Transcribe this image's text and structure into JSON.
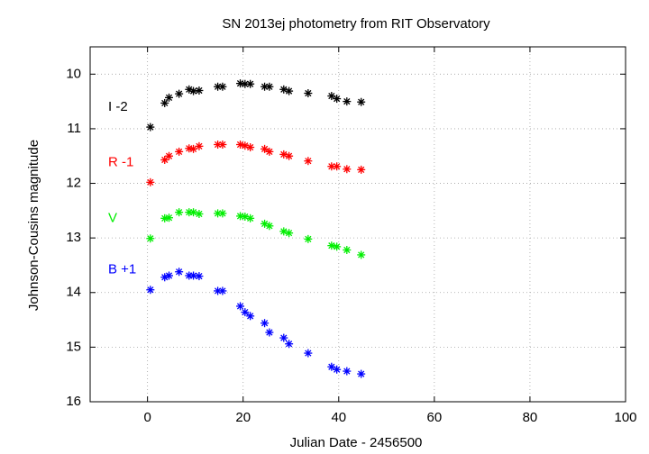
{
  "chart_data": {
    "type": "scatter",
    "title": "SN 2013ej photometry from RIT Observatory",
    "x_label": "Julian Date - 2456500",
    "y_label": "Johnson-Cousins magnitude",
    "xlim": [
      -12,
      100
    ],
    "ylim": [
      16,
      9.5
    ],
    "xticks": [
      0,
      20,
      40,
      60,
      80,
      100
    ],
    "yticks": [
      10,
      11,
      12,
      13,
      14,
      15,
      16
    ],
    "grid": true,
    "x": [
      0.6,
      3.6,
      4.5,
      6.6,
      8.7,
      9.6,
      10.8,
      14.7,
      15.7,
      19.4,
      20.4,
      21.5,
      24.5,
      25.5,
      28.5,
      29.6,
      33.6,
      38.5,
      39.6,
      41.7,
      44.7
    ],
    "series": [
      {
        "name": "I -2",
        "color": "#000000",
        "values": [
          10.97,
          10.53,
          10.43,
          10.36,
          10.28,
          10.31,
          10.3,
          10.23,
          10.23,
          10.17,
          10.18,
          10.18,
          10.23,
          10.23,
          10.28,
          10.31,
          10.35,
          10.4,
          10.45,
          10.5,
          10.51
        ]
      },
      {
        "name": "R -1",
        "color": "#ff0000",
        "values": [
          11.98,
          11.57,
          11.5,
          11.42,
          11.36,
          11.37,
          11.32,
          11.29,
          11.29,
          11.29,
          11.31,
          11.34,
          11.37,
          11.42,
          11.47,
          11.5,
          11.59,
          11.69,
          11.69,
          11.74,
          11.75
        ]
      },
      {
        "name": "V",
        "color": "#00ee00",
        "values": [
          13.01,
          12.64,
          12.63,
          12.53,
          12.53,
          12.53,
          12.56,
          12.55,
          12.55,
          12.6,
          12.61,
          12.64,
          12.74,
          12.78,
          12.88,
          12.91,
          13.02,
          13.14,
          13.16,
          13.22,
          13.31
        ]
      },
      {
        "name": "B +1",
        "color": "#0000ff",
        "values": [
          13.95,
          13.72,
          13.69,
          13.62,
          13.69,
          13.69,
          13.7,
          13.97,
          13.97,
          14.25,
          14.36,
          14.43,
          14.56,
          14.73,
          14.83,
          14.94,
          15.11,
          15.36,
          15.41,
          15.44,
          15.49
        ]
      }
    ]
  }
}
